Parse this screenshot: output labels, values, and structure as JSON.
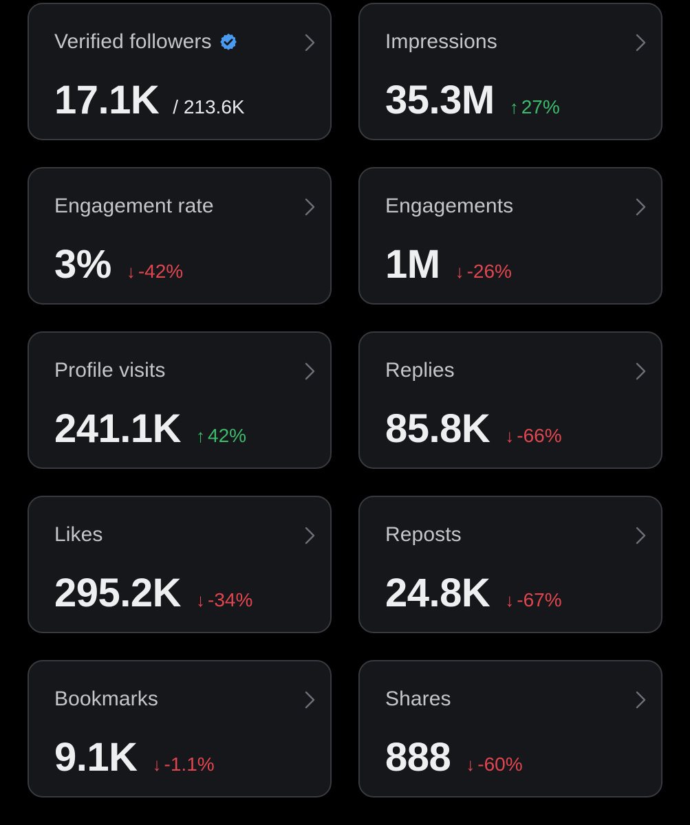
{
  "colors": {
    "background": "#000000",
    "card": "#16171b",
    "card_border": "#393a3f",
    "positive": "#3dba6b",
    "negative": "#e0464f",
    "verified_badge": "#4a9bf0"
  },
  "metrics": [
    {
      "title": "Verified followers",
      "value": "17.1K",
      "sub": "/ 213.6K",
      "verified_icon": "verified-badge-icon"
    },
    {
      "title": "Impressions",
      "value": "35.3M",
      "delta": "27%",
      "direction": "up"
    },
    {
      "title": "Engagement rate",
      "value": "3%",
      "delta": "-42%",
      "direction": "down"
    },
    {
      "title": "Engagements",
      "value": "1M",
      "delta": "-26%",
      "direction": "down"
    },
    {
      "title": "Profile visits",
      "value": "241.1K",
      "delta": "42%",
      "direction": "up"
    },
    {
      "title": "Replies",
      "value": "85.8K",
      "delta": "-66%",
      "direction": "down"
    },
    {
      "title": "Likes",
      "value": "295.2K",
      "delta": "-34%",
      "direction": "down"
    },
    {
      "title": "Reposts",
      "value": "24.8K",
      "delta": "-67%",
      "direction": "down"
    },
    {
      "title": "Bookmarks",
      "value": "9.1K",
      "delta": "-1.1%",
      "direction": "down"
    },
    {
      "title": "Shares",
      "value": "888",
      "delta": "-60%",
      "direction": "down"
    }
  ],
  "arrows": {
    "up": "↑",
    "down": "↓"
  }
}
